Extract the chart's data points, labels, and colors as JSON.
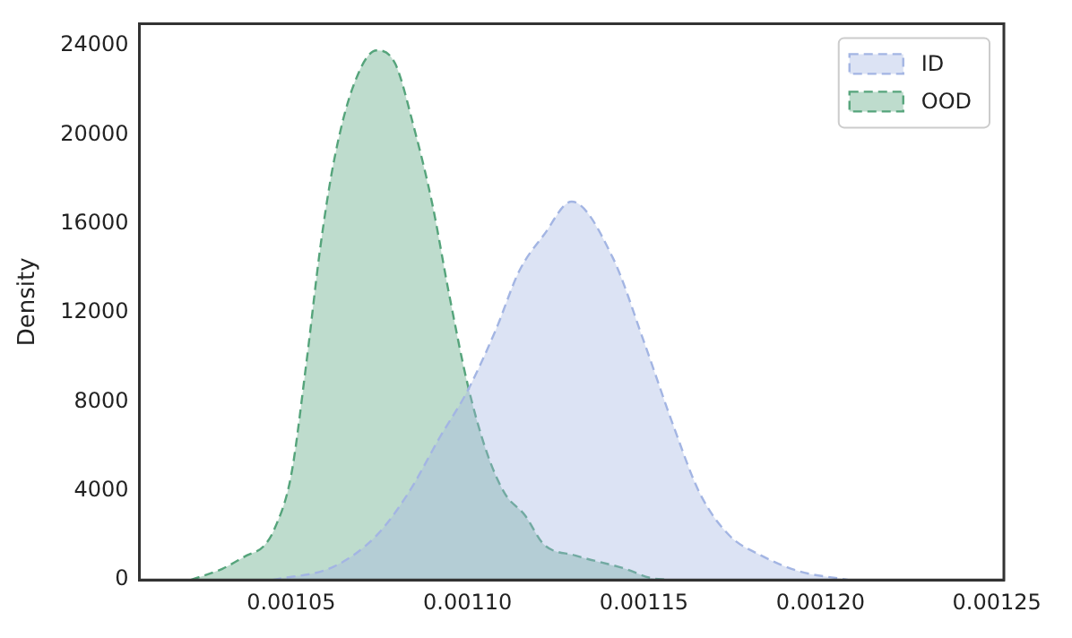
{
  "chart_data": {
    "type": "area",
    "ylabel": "Density",
    "xlim": [
      0.001007,
      0.001252
    ],
    "xticks": [
      0.00105,
      {
        "value": 0.0011,
        "label": "0.00110"
      },
      0.00115,
      {
        "value": 0.0012,
        "label": "0.00120"
      },
      0.00125
    ],
    "ylim": [
      0,
      25000
    ],
    "yticks": [
      0,
      4000,
      8000,
      12000,
      16000,
      20000,
      24000
    ],
    "grid": false,
    "legend": "top right",
    "line_style": "dashed",
    "series": [
      {
        "name": "ID",
        "color": "#a3b5e3",
        "x": [
          0.0010447,
          0.0010621,
          0.0010742,
          0.0010832,
          0.0010921,
          0.0011,
          0.0011079,
          0.0011147,
          0.0011216,
          0.0011295,
          0.0011411,
          0.00115,
          0.0011584,
          0.0011658,
          0.0011742,
          0.0011832,
          0.0011937,
          0.0012079
        ],
        "values": [
          0,
          600,
          2000,
          3900,
          6400,
          8500,
          11200,
          13900,
          15500,
          17000,
          14500,
          10700,
          6900,
          3900,
          2000,
          1100,
          400,
          0
        ]
      },
      {
        "name": "OOD",
        "color": "#55a47b",
        "x": [
          0.0010216,
          0.0010305,
          0.0010374,
          0.0010421,
          0.0010453,
          0.00105,
          0.0010542,
          0.0010584,
          0.0010621,
          0.0010674,
          0.0010742,
          0.0010795,
          0.0010847,
          0.00109,
          0.0010947,
          0.0011,
          0.0011053,
          0.0011105,
          0.0011163,
          0.0011216,
          0.0011305,
          0.0011447,
          0.0011516,
          0.001157
        ],
        "values": [
          0,
          500,
          1100,
          1500,
          2300,
          4700,
          9600,
          15100,
          18800,
          22100,
          23800,
          23200,
          20400,
          16900,
          12900,
          8800,
          5800,
          3900,
          2900,
          1600,
          1100,
          500,
          100,
          0
        ]
      }
    ]
  }
}
